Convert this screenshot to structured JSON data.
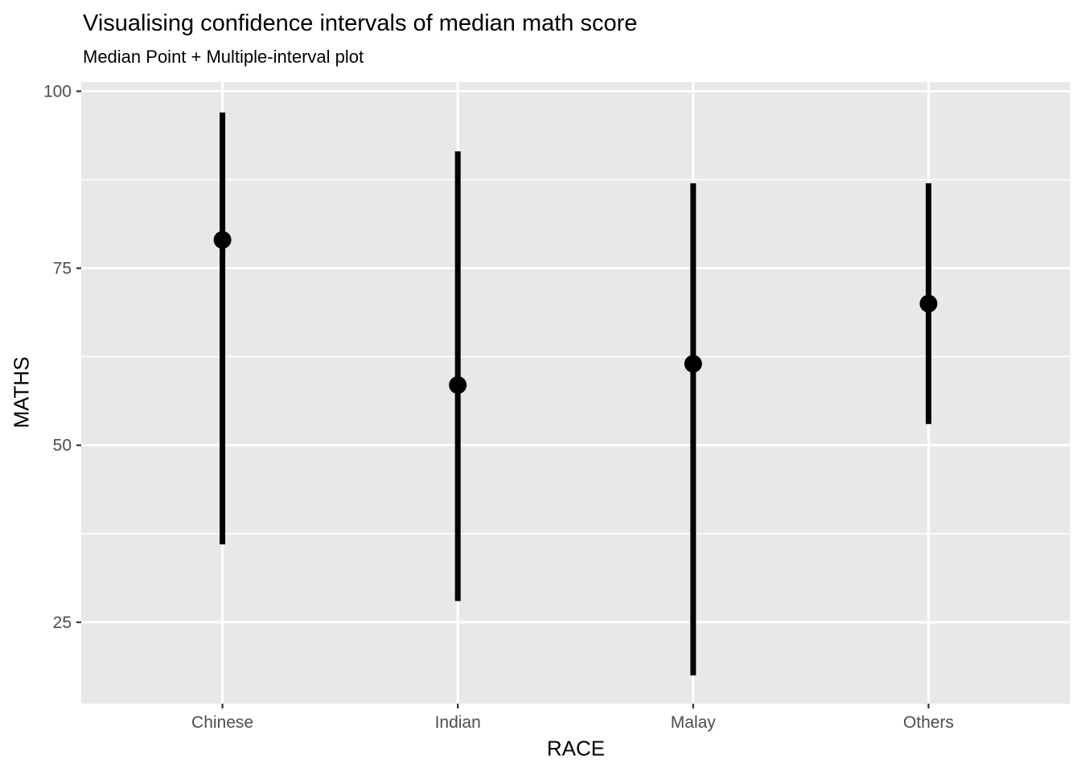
{
  "chart_data": {
    "type": "pointrange",
    "title": "Visualising confidence intervals of median math score",
    "subtitle": "Median Point + Multiple-interval plot",
    "xlabel": "RACE",
    "ylabel": "MATHS",
    "categories": [
      "Chinese",
      "Indian",
      "Malay",
      "Others"
    ],
    "series": [
      {
        "name": "median",
        "values": [
          79,
          58.5,
          61.5,
          70
        ]
      },
      {
        "name": "ci_lower",
        "values": [
          36,
          28,
          17.5,
          53
        ]
      },
      {
        "name": "ci_upper",
        "values": [
          97,
          91.5,
          87,
          87
        ]
      }
    ],
    "ylim": [
      13.5,
      101.3
    ],
    "yticks": [
      25,
      50,
      75,
      100
    ],
    "yticks_minor": [
      37.5,
      62.5,
      87.5
    ],
    "grid": "on",
    "legend": "none",
    "colors": {
      "background": "#FFFFFF",
      "panel_background": "#E8E8E8",
      "gridline": "#FFFFFF",
      "geom": "#000000",
      "axis_text": "#4D4D4D",
      "axis_title": "#000000",
      "tick_mark": "#333333"
    }
  }
}
